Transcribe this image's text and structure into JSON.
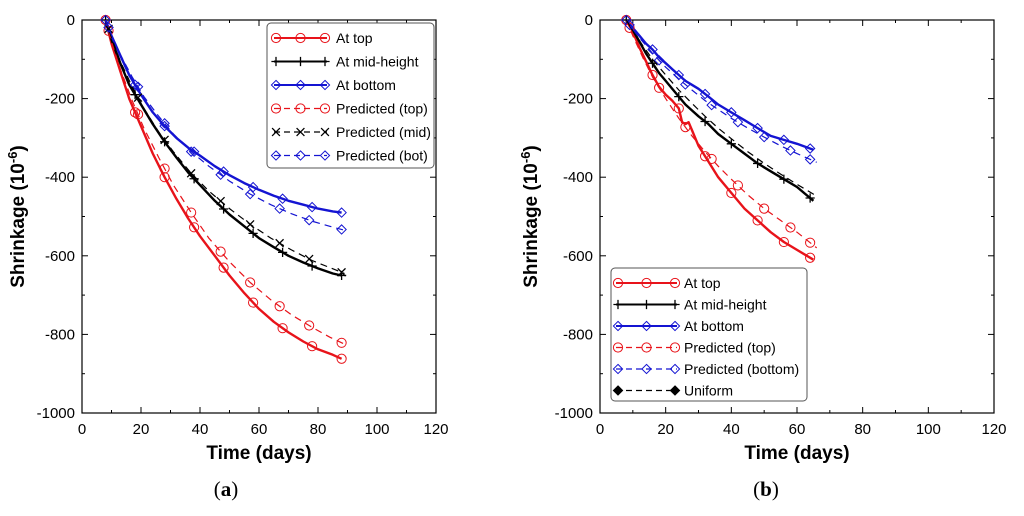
{
  "chart_data": [
    {
      "id": "a",
      "type": "line",
      "panel_label": "a",
      "xlabel": "Time (days)",
      "ylabel_base": "Shrinkage (10",
      "ylabel_exp": "-6",
      "ylabel_close": ")",
      "xlim": [
        0,
        120
      ],
      "ylim": [
        -1000,
        0
      ],
      "xticks": [
        0,
        20,
        40,
        60,
        80,
        100,
        120
      ],
      "yticks": [
        0,
        -200,
        -400,
        -600,
        -800,
        -1000
      ],
      "grid": false,
      "legend_position": "top-right",
      "series": [
        {
          "name": "At top",
          "color": "#e8131a",
          "dash": "solid",
          "width": 2.4,
          "marker": "circle",
          "x": [
            8,
            10,
            13,
            16,
            20,
            24,
            28,
            32,
            36,
            40,
            45,
            50,
            55,
            60,
            65,
            70,
            75,
            80,
            85,
            88
          ],
          "y": [
            0,
            -60,
            -130,
            -200,
            -270,
            -340,
            -400,
            -455,
            -505,
            -550,
            -600,
            -650,
            -695,
            -735,
            -768,
            -795,
            -818,
            -838,
            -852,
            -862
          ],
          "marker_x": [
            8,
            18,
            28,
            38,
            48,
            58,
            68,
            78,
            88
          ]
        },
        {
          "name": "At mid-height",
          "color": "#000000",
          "dash": "solid",
          "width": 2.4,
          "marker": "plus",
          "x": [
            8,
            10,
            13,
            16,
            20,
            24,
            28,
            32,
            36,
            40,
            45,
            50,
            55,
            60,
            65,
            70,
            75,
            80,
            85,
            88
          ],
          "y": [
            0,
            -50,
            -110,
            -165,
            -215,
            -265,
            -310,
            -350,
            -388,
            -420,
            -460,
            -495,
            -525,
            -555,
            -578,
            -600,
            -617,
            -632,
            -645,
            -650
          ],
          "marker_x": [
            8,
            18,
            28,
            38,
            48,
            58,
            68,
            78,
            88
          ]
        },
        {
          "name": "At bottom",
          "color": "#1414d2",
          "dash": "solid",
          "width": 2.4,
          "marker": "diamond",
          "x": [
            8,
            10,
            13,
            16,
            20,
            24,
            28,
            32,
            36,
            40,
            45,
            50,
            55,
            60,
            65,
            70,
            75,
            80,
            85,
            88
          ],
          "y": [
            0,
            -40,
            -90,
            -140,
            -190,
            -235,
            -270,
            -300,
            -325,
            -345,
            -372,
            -395,
            -415,
            -432,
            -447,
            -460,
            -470,
            -480,
            -487,
            -490
          ],
          "marker_x": [
            8,
            18,
            28,
            38,
            48,
            58,
            68,
            78,
            88
          ]
        },
        {
          "name": "Predicted (top)",
          "color": "#e8131a",
          "dash": "dashed",
          "width": 1.2,
          "marker": "circle",
          "x": [
            8,
            10,
            13,
            17,
            21,
            26,
            31,
            37,
            43,
            50,
            57,
            64,
            71,
            78,
            84,
            89
          ],
          "y": [
            0,
            -55,
            -125,
            -205,
            -275,
            -350,
            -420,
            -490,
            -555,
            -615,
            -668,
            -712,
            -750,
            -782,
            -807,
            -825
          ],
          "marker_x": [
            9,
            19,
            28,
            37,
            47,
            57,
            67,
            77,
            88
          ]
        },
        {
          "name": "Predicted (mid)",
          "color": "#000000",
          "dash": "dashed",
          "width": 1.2,
          "marker": "x",
          "x": [
            8,
            10,
            13,
            17,
            21,
            26,
            31,
            37,
            43,
            50,
            57,
            64,
            71,
            78,
            84,
            89
          ],
          "y": [
            0,
            -45,
            -105,
            -170,
            -225,
            -285,
            -335,
            -390,
            -435,
            -480,
            -520,
            -555,
            -585,
            -612,
            -630,
            -645
          ],
          "marker_x": [
            9,
            19,
            28,
            37,
            47,
            57,
            67,
            77,
            88
          ]
        },
        {
          "name": "Predicted (bot)",
          "color": "#1414d2",
          "dash": "dashed",
          "width": 1.2,
          "marker": "diamond",
          "x": [
            8,
            10,
            13,
            17,
            21,
            26,
            31,
            37,
            43,
            50,
            57,
            64,
            71,
            78,
            84,
            89
          ],
          "y": [
            0,
            -38,
            -88,
            -145,
            -195,
            -245,
            -290,
            -335,
            -372,
            -410,
            -443,
            -470,
            -493,
            -512,
            -525,
            -535
          ],
          "marker_x": [
            9,
            19,
            28,
            37,
            47,
            57,
            67,
            77,
            88
          ]
        }
      ]
    },
    {
      "id": "b",
      "type": "line",
      "panel_label": "b",
      "xlabel": "Time (days)",
      "ylabel_base": "Shrinkage (10",
      "ylabel_exp": "-6",
      "ylabel_close": ")",
      "xlim": [
        0,
        120
      ],
      "ylim": [
        -1000,
        0
      ],
      "xticks": [
        0,
        20,
        40,
        60,
        80,
        100,
        120
      ],
      "yticks": [
        0,
        -200,
        -400,
        -600,
        -800,
        -1000
      ],
      "grid": false,
      "legend_position": "bottom-left",
      "series": [
        {
          "name": "At top",
          "color": "#e8131a",
          "dash": "solid",
          "width": 2.4,
          "marker": "circle",
          "x": [
            8,
            10,
            12,
            14,
            16,
            18,
            20,
            22,
            24,
            25,
            26,
            27,
            28,
            30,
            33,
            36,
            40,
            44,
            48,
            52,
            56,
            60,
            65
          ],
          "y": [
            0,
            -30,
            -70,
            -105,
            -140,
            -170,
            -190,
            -205,
            -225,
            -260,
            -265,
            -260,
            -280,
            -320,
            -360,
            -400,
            -440,
            -480,
            -510,
            -540,
            -565,
            -585,
            -610
          ],
          "marker_x": [
            8,
            16,
            24,
            32,
            40,
            48,
            56,
            64
          ]
        },
        {
          "name": "At mid-height",
          "color": "#000000",
          "dash": "solid",
          "width": 2.4,
          "marker": "plus",
          "x": [
            8,
            10,
            12,
            14,
            16,
            18,
            20,
            22,
            24,
            26,
            28,
            30,
            33,
            36,
            40,
            44,
            48,
            52,
            56,
            60,
            65
          ],
          "y": [
            0,
            -25,
            -55,
            -85,
            -110,
            -135,
            -155,
            -175,
            -195,
            -215,
            -230,
            -245,
            -265,
            -290,
            -315,
            -340,
            -365,
            -385,
            -405,
            -425,
            -460
          ],
          "marker_x": [
            8,
            16,
            24,
            32,
            40,
            48,
            56,
            64
          ]
        },
        {
          "name": "At bottom",
          "color": "#1414d2",
          "dash": "solid",
          "width": 2.4,
          "marker": "diamond",
          "x": [
            8,
            10,
            12,
            14,
            16,
            18,
            20,
            22,
            24,
            26,
            28,
            30,
            33,
            36,
            40,
            44,
            48,
            52,
            56,
            60,
            65
          ],
          "y": [
            0,
            -20,
            -40,
            -60,
            -75,
            -95,
            -110,
            -125,
            -140,
            -155,
            -165,
            -175,
            -195,
            -215,
            -235,
            -255,
            -275,
            -295,
            -305,
            -315,
            -330
          ],
          "marker_x": [
            8,
            16,
            24,
            32,
            40,
            48,
            56,
            64
          ]
        },
        {
          "name": "Predicted (top)",
          "color": "#e8131a",
          "dash": "dashed",
          "width": 1.2,
          "marker": "circle",
          "x": [
            8,
            10,
            13,
            16,
            20,
            24,
            28,
            32,
            36,
            40,
            45,
            50,
            55,
            60,
            66
          ],
          "y": [
            0,
            -40,
            -95,
            -145,
            -200,
            -250,
            -295,
            -335,
            -372,
            -405,
            -445,
            -480,
            -510,
            -540,
            -580
          ],
          "marker_x": [
            9,
            18,
            26,
            34,
            42,
            50,
            58,
            64
          ]
        },
        {
          "name": "Predicted (bottom)",
          "color": "#1414d2",
          "dash": "dashed",
          "width": 1.2,
          "marker": "diamond",
          "x": [
            8,
            10,
            13,
            16,
            20,
            24,
            28,
            32,
            36,
            40,
            45,
            50,
            55,
            60,
            66
          ],
          "y": [
            0,
            -25,
            -55,
            -85,
            -120,
            -150,
            -178,
            -205,
            -228,
            -250,
            -275,
            -298,
            -320,
            -340,
            -362
          ],
          "marker_x": [
            9,
            18,
            26,
            34,
            42,
            50,
            58,
            64
          ]
        },
        {
          "name": "Uniform",
          "color": "#000000",
          "dash": "dashed",
          "width": 1.2,
          "marker": "filled-diamond",
          "x": [
            8,
            10,
            13,
            16,
            20,
            24,
            28,
            32,
            36,
            40,
            45,
            50,
            55,
            60,
            66
          ],
          "y": [
            0,
            -28,
            -65,
            -100,
            -140,
            -178,
            -212,
            -245,
            -275,
            -302,
            -335,
            -365,
            -392,
            -418,
            -448
          ],
          "marker_x": []
        }
      ]
    }
  ]
}
